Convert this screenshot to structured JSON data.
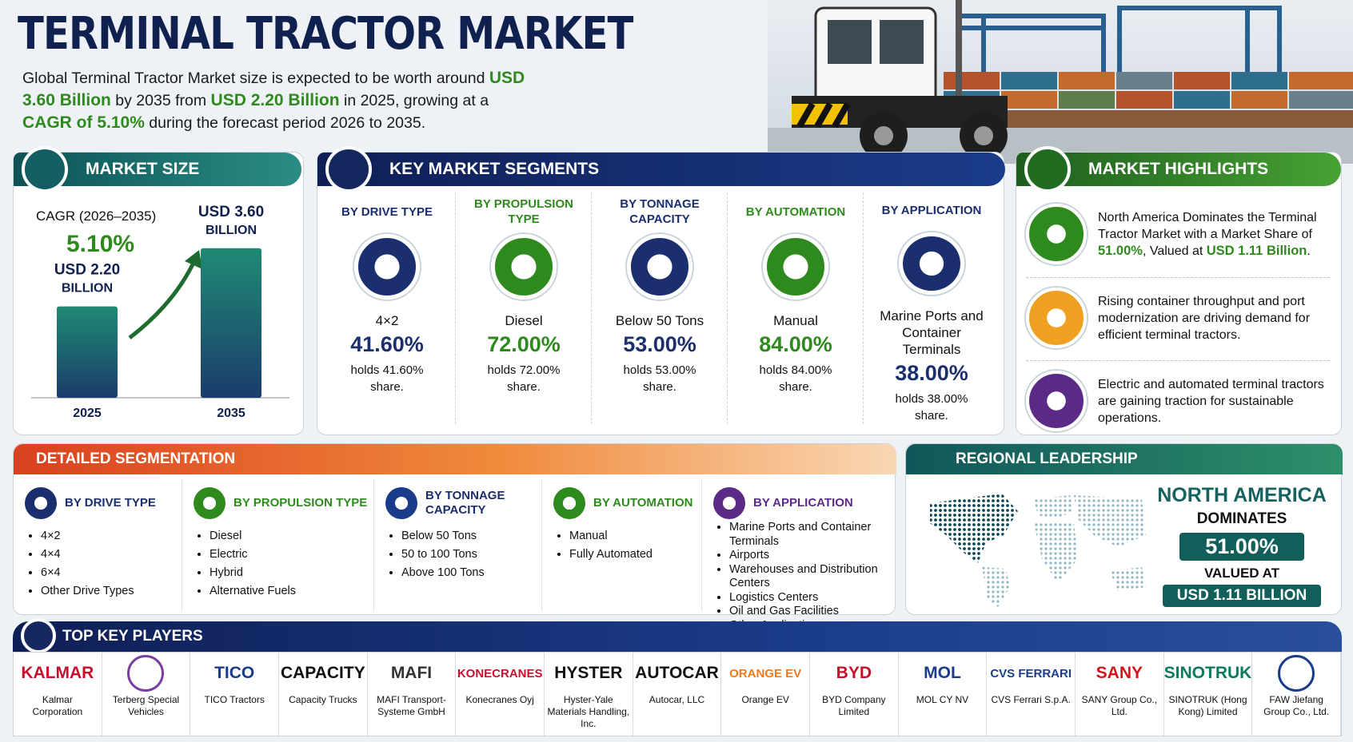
{
  "header": {
    "title": "TERMINAL TRACTOR MARKET",
    "intro": [
      "Global Terminal Tractor Market size is expected to be worth around ",
      "USD 3.60 Billion",
      " by 2035 from ",
      "USD 2.20 Billion",
      " in 2025, growing at a ",
      "CAGR of 5.10%",
      " during the forecast period 2026 to 2035."
    ]
  },
  "market_size": {
    "title": "MARKET SIZE",
    "cagr_label": "CAGR (2026–2035)",
    "cagr": "5.10%",
    "bars": [
      {
        "label": "USD 2.20 BILLION",
        "value": 2.2,
        "year": "2025"
      },
      {
        "label": "USD 3.60 BILLION",
        "value": 3.6,
        "year": "2035"
      }
    ]
  },
  "key_segments": {
    "title": "KEY MARKET SEGMENTS",
    "items": [
      {
        "heading": "BY DRIVE TYPE",
        "name": "4×2",
        "share": "41.60%",
        "note": "holds 41.60% share."
      },
      {
        "heading": "BY PROPULSION TYPE",
        "name": "Diesel",
        "share": "72.00%",
        "note": "holds 72.00% share."
      },
      {
        "heading": "BY TONNAGE CAPACITY",
        "name": "Below 50 Tons",
        "share": "53.00%",
        "note": "holds 53.00% share."
      },
      {
        "heading": "BY AUTOMATION",
        "name": "Manual",
        "share": "84.00%",
        "note": "holds 84.00% share."
      },
      {
        "heading": "BY APPLICATION",
        "name": "Marine Ports and Container Terminals",
        "share": "38.00%",
        "note": "holds 38.00% share."
      }
    ]
  },
  "highlights": {
    "title": "MARKET HIGHLIGHTS",
    "items": [
      [
        "North America Dominates the Terminal Tractor Market with a Market Share of ",
        "51.00%",
        ", Valued at ",
        "USD 1.11 Billion",
        "."
      ],
      [
        "Rising container throughput and port modernization are driving demand for efficient terminal tractors."
      ],
      [
        "Electric and automated terminal tractors are gaining traction for sustainable operations."
      ]
    ]
  },
  "detailed_segmentation": {
    "title": "DETAILED SEGMENTATION",
    "groups": [
      {
        "heading": "BY DRIVE TYPE",
        "items": [
          "4×2",
          "4×4",
          "6×4",
          "Other Drive Types"
        ]
      },
      {
        "heading": "BY PROPULSION TYPE",
        "items": [
          "Diesel",
          "Electric",
          "Hybrid",
          "Alternative Fuels"
        ]
      },
      {
        "heading": "BY TONNAGE CAPACITY",
        "items": [
          "Below 50 Tons",
          "50 to 100 Tons",
          "Above 100 Tons"
        ]
      },
      {
        "heading": "BY AUTOMATION",
        "items": [
          "Manual",
          "Fully Automated"
        ]
      },
      {
        "heading": "BY APPLICATION",
        "items": [
          "Marine Ports and Container Terminals",
          "Airports",
          "Warehouses and Distribution Centers",
          "Logistics Centers",
          "Oil and Gas Facilities",
          "Other Applications"
        ]
      }
    ]
  },
  "regional": {
    "title": "REGIONAL LEADERSHIP",
    "region": "NORTH AMERICA",
    "dominates": "DOMINATES",
    "share": "51.00%",
    "valued_label": "VALUED AT",
    "value": "USD 1.11 BILLION"
  },
  "players": {
    "title": "TOP KEY PLAYERS",
    "items": [
      {
        "logo": "KALMAR",
        "name": "Kalmar Corporation"
      },
      {
        "name": "Terberg Special Vehicles"
      },
      {
        "logo": "TICO",
        "name": "TICO Tractors"
      },
      {
        "logo": "CAPACITY",
        "name": "Capacity Trucks"
      },
      {
        "logo": "MAFI",
        "name": "MAFI Transport-Systeme GmbH"
      },
      {
        "logo": "KONECRANES",
        "name": "Konecranes Oyj"
      },
      {
        "logo": "HYSTER",
        "name": "Hyster-Yale Materials Handling, Inc."
      },
      {
        "logo": "AUTOCAR",
        "name": "Autocar, LLC"
      },
      {
        "logo": "ORANGE EV",
        "name": "Orange EV"
      },
      {
        "logo": "BYD",
        "name": "BYD Company Limited"
      },
      {
        "logo": "MOL",
        "name": "MOL CY NV"
      },
      {
        "logo": "CVS FERRARI",
        "name": "CVS Ferrari S.p.A."
      },
      {
        "logo": "SANY",
        "name": "SANY Group Co., Ltd."
      },
      {
        "logo": "SINOTRUK",
        "name": "SINOTRUK (Hong Kong) Limited"
      },
      {
        "name": "FAW Jiefang Group Co., Ltd."
      }
    ]
  }
}
